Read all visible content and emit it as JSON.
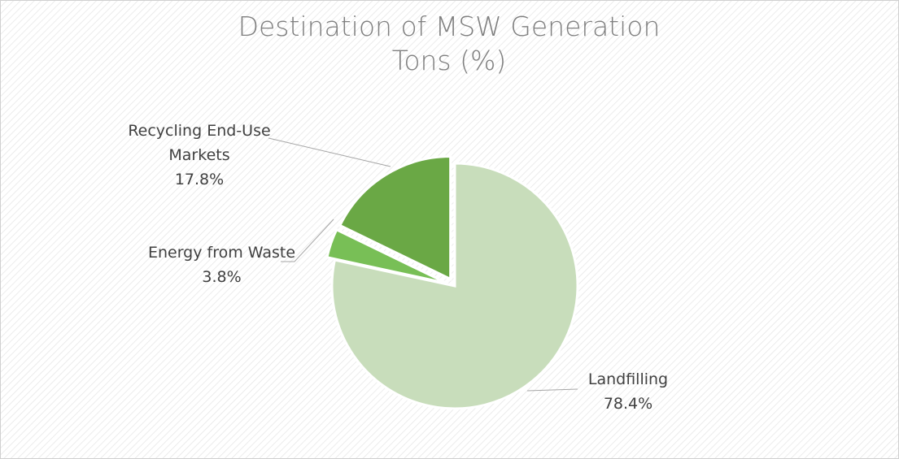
{
  "chart_data": {
    "type": "pie",
    "title": "Destination of MSW Generation Tons (%)",
    "categories": [
      "Landfilling",
      "Energy from Waste",
      "Recycling End-Use Markets"
    ],
    "values": [
      78.4,
      3.8,
      17.8
    ],
    "value_labels": [
      "78.4%",
      "3.8%",
      "17.8%"
    ],
    "colors": [
      "#c8ddbb",
      "#78bf56",
      "#6aa845"
    ]
  }
}
